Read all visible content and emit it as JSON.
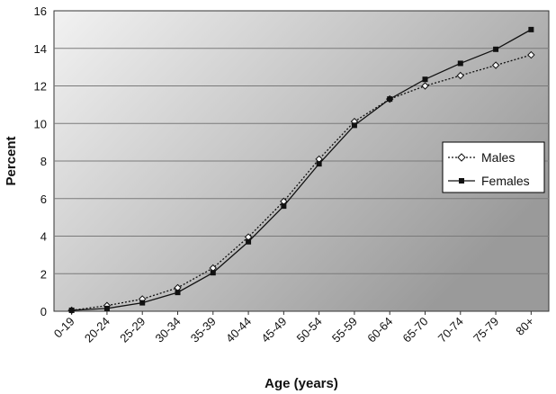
{
  "chart_data": {
    "type": "line",
    "categories": [
      "0-19",
      "20-24",
      "25-29",
      "30-34",
      "35-39",
      "40-44",
      "45-49",
      "50-54",
      "55-59",
      "60-64",
      "65-70",
      "70-74",
      "75-79",
      "80+"
    ],
    "series": [
      {
        "name": "Males",
        "style": "dotted",
        "marker": "open-diamond",
        "values": [
          0.05,
          0.3,
          0.65,
          1.25,
          2.3,
          3.95,
          5.85,
          8.1,
          10.1,
          11.3,
          12.0,
          12.55,
          13.1,
          13.65
        ]
      },
      {
        "name": "Females",
        "style": "solid",
        "marker": "filled-square",
        "values": [
          0.05,
          0.15,
          0.45,
          1.0,
          2.05,
          3.7,
          5.6,
          7.85,
          9.9,
          11.3,
          12.35,
          13.2,
          13.95,
          15.0
        ]
      }
    ],
    "xlabel": "Age (years)",
    "ylabel": "Percent",
    "ylim": [
      0,
      16
    ],
    "yticks": [
      0,
      2,
      4,
      6,
      8,
      10,
      12,
      14,
      16
    ],
    "grid": true,
    "legend_position": "right"
  },
  "colors": {
    "line": "#111111",
    "grid": "#7a7a7a",
    "plot_bg_light": "#f2f2f2",
    "plot_bg_dark": "#9a9a9a"
  }
}
